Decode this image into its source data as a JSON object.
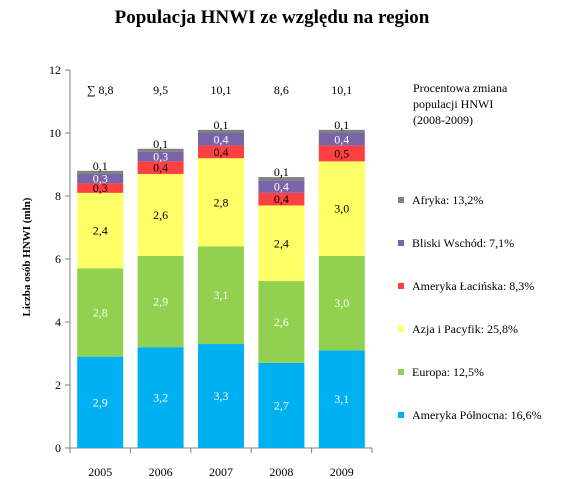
{
  "chart_data": {
    "type": "bar",
    "stacked": true,
    "title": "Populacja HNWI ze względu na region",
    "ylabel": "Liczba osób HNWI (mln)",
    "xlabel": "",
    "ylim": [
      0,
      12
    ],
    "yticks": [
      0,
      2,
      4,
      6,
      8,
      10,
      12
    ],
    "grid": false,
    "categories": [
      "2005",
      "2006",
      "2007",
      "2008",
      "2009"
    ],
    "totals": [
      "∑ 8,8",
      "9,5",
      "10,1",
      "8,6",
      "10,1"
    ],
    "series": [
      {
        "name": "Ameryka Północna",
        "color": "#00b0f0",
        "label_color": "#ffffff",
        "values": [
          2.9,
          3.2,
          3.3,
          2.7,
          3.1
        ],
        "labels": [
          "2,9",
          "3,2",
          "3,3",
          "2,7",
          "3,1"
        ]
      },
      {
        "name": "Europa",
        "color": "#92d050",
        "label_color": "#ffffff",
        "values": [
          2.8,
          2.9,
          3.1,
          2.6,
          3.0
        ],
        "labels": [
          "2,8",
          "2,9",
          "3,1",
          "2,6",
          "3,0"
        ]
      },
      {
        "name": "Azja i Pacyfik",
        "color": "#ffff66",
        "label_color": "#000000",
        "values": [
          2.4,
          2.6,
          2.8,
          2.4,
          3.0
        ],
        "labels": [
          "2,4",
          "2,6",
          "2,8",
          "2,4",
          "3,0"
        ]
      },
      {
        "name": "Ameryka Łacińska",
        "color": "#ff4040",
        "label_color": "#000000",
        "values": [
          0.3,
          0.4,
          0.4,
          0.4,
          0.5
        ],
        "labels": [
          "0,3",
          "0,4",
          "0,4",
          "0,4",
          "0,5"
        ]
      },
      {
        "name": "Bliski Wschód",
        "color": "#7b63a8",
        "label_color": "#ffffff",
        "values": [
          0.3,
          0.3,
          0.4,
          0.4,
          0.4
        ],
        "labels": [
          "0,3",
          "0,3",
          "0,4",
          "0,4",
          "0,4"
        ]
      },
      {
        "name": "Afryka",
        "color": "#808080",
        "label_color": "#000000",
        "values": [
          0.1,
          0.1,
          0.1,
          0.1,
          0.1
        ],
        "labels": [
          "0,1",
          "0,1",
          "0,1",
          "0,1",
          "0,1"
        ]
      }
    ],
    "legend": {
      "title_lines": [
        "Procentowa zmiana",
        "populacji HNWI",
        "(2008-2009)"
      ],
      "placement": "right",
      "order": [
        "Afryka",
        "Bliski Wschód",
        "Ameryka Łacińska",
        "Azja i Pacyfik",
        "Europa",
        "Ameryka Północna"
      ],
      "entries": [
        {
          "label": "Afryka: 13,2%",
          "color": "#808080"
        },
        {
          "label": "Bliski Wschód: 7,1%",
          "color": "#7b63a8"
        },
        {
          "label": "Ameryka Łacińska: 8,3%",
          "color": "#ff4040"
        },
        {
          "label": "Azja i Pacyfik: 25,8%",
          "color": "#ffff66"
        },
        {
          "label": "Europa: 12,5%",
          "color": "#92d050"
        },
        {
          "label": "Ameryka Północna: 16,6%",
          "color": "#00b0f0"
        }
      ]
    }
  }
}
